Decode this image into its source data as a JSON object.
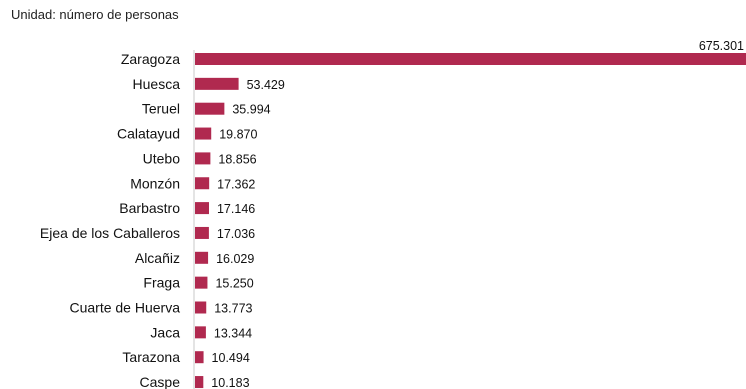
{
  "unit_note": "Unidad: número de personas",
  "colors": {
    "bar": "#b0294f"
  },
  "chart_data": {
    "type": "bar",
    "orientation": "horizontal",
    "title": "",
    "xlabel": "",
    "ylabel": "",
    "categories": [
      "Zaragoza",
      "Huesca",
      "Teruel",
      "Calatayud",
      "Utebo",
      "Monzón",
      "Barbastro",
      "Ejea de los Caballeros",
      "Alcañiz",
      "Fraga",
      "Cuarte de Huerva",
      "Jaca",
      "Tarazona",
      "Caspe"
    ],
    "values": [
      675301,
      53429,
      35994,
      19870,
      18856,
      17362,
      17146,
      17036,
      16029,
      15250,
      13773,
      13344,
      10494,
      10183
    ],
    "value_labels": [
      "675.301",
      "53.429",
      "35.994",
      "19.870",
      "18.856",
      "17.362",
      "17.146",
      "17.036",
      "16.029",
      "15.250",
      "13.773",
      "13.344",
      "10.494",
      "10.183"
    ],
    "grid": false,
    "legend": "none"
  }
}
